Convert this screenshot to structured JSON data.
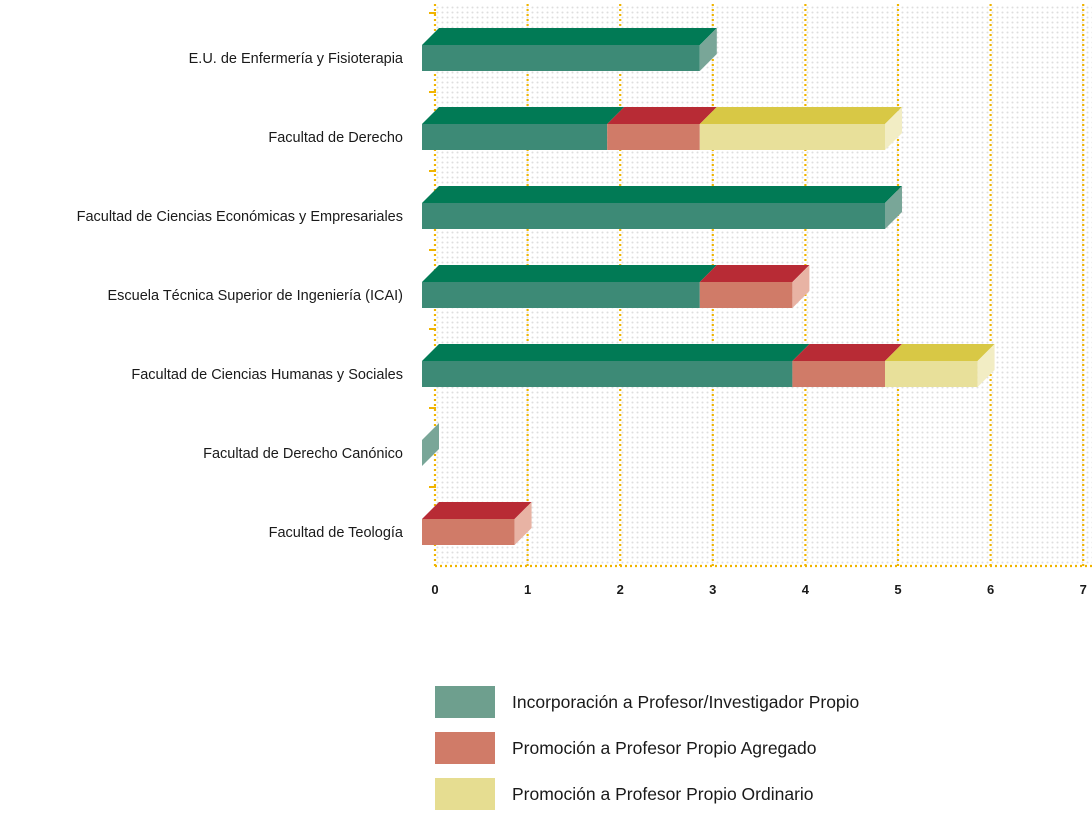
{
  "chart_data": {
    "type": "bar",
    "orientation": "horizontal",
    "stacked": true,
    "categories": [
      "E.U. de Enfermería y Fisioterapia",
      "Facultad de Derecho",
      "Facultad de Ciencias Económicas y Empresariales",
      "Escuela Técnica Superior de Ingeniería (ICAI)",
      "Facultad de Ciencias Humanas y Sociales",
      "Facultad de Derecho Canónico",
      "Facultad de Teología"
    ],
    "series": [
      {
        "name": "Incorporación a Profesor/Investigador Propio",
        "front_color": "#3d8a76",
        "top_color": "#017a55",
        "side_color": "#79a698",
        "legend_color": "#6e9f8e",
        "values": [
          3,
          2,
          5,
          3,
          4,
          0,
          0
        ]
      },
      {
        "name": "Promoción a Profesor Propio Agregado",
        "front_color": "#d07b68",
        "top_color": "#b82b35",
        "side_color": "#e8b3a4",
        "legend_color": "#d07b68",
        "values": [
          0,
          1,
          0,
          1,
          1,
          0,
          1
        ]
      },
      {
        "name": "Promoción a Profesor Propio Ordinario",
        "front_color": "#e8e09a",
        "top_color": "#d8c845",
        "side_color": "#f2edc4",
        "legend_color": "#e6dd91",
        "values": [
          0,
          2,
          0,
          0,
          1,
          0,
          0
        ]
      }
    ],
    "xticks": [
      "0",
      "1",
      "2",
      "3",
      "4",
      "5",
      "6",
      "7"
    ],
    "xlim": [
      0,
      7
    ],
    "grid": true,
    "grid_color": "#f0b400",
    "legend_position": "bottom"
  }
}
